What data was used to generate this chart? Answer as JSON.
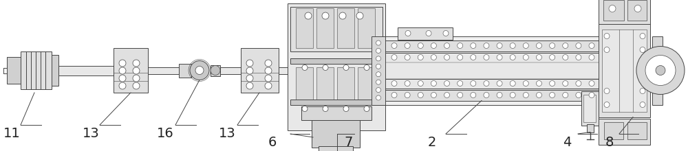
{
  "bg_color": "#ffffff",
  "lc": "#444444",
  "lw": 0.7,
  "figsize": [
    10.0,
    2.2
  ],
  "dpi": 100,
  "xlim": [
    0,
    1000
  ],
  "ylim": [
    0,
    220
  ]
}
